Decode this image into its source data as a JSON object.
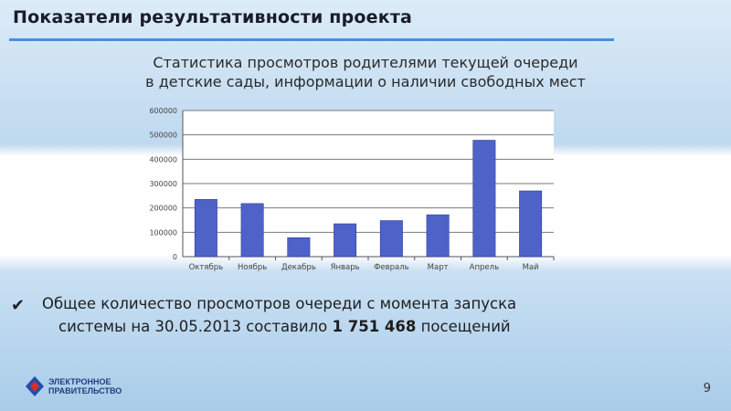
{
  "header": {
    "title": "Показатели результативности проекта"
  },
  "subtitle": {
    "line1": "Статистика просмотров родителями текущей очереди",
    "line2": "в детские сады, информации о наличии свободных мест"
  },
  "chart_data": {
    "type": "bar",
    "categories": [
      "Октябрь",
      "Ноябрь",
      "Декабрь",
      "Январь",
      "Февраль",
      "Март",
      "Апрель",
      "Май"
    ],
    "values": [
      235000,
      218000,
      78000,
      135000,
      148000,
      172000,
      478000,
      270000
    ],
    "ylim": [
      0,
      600000
    ],
    "yticks": [
      "0",
      "100000",
      "200000",
      "300000",
      "400000",
      "500000",
      "600000"
    ],
    "grid": true,
    "bar_color": "#4f62c8"
  },
  "note": {
    "prefix": "Общее количество просмотров очереди с момента запуска",
    "line2_text": "системы на 30.05.2013 составило ",
    "total": "1 751 468",
    "suffix": " посещений"
  },
  "footer": {
    "page_number": "9",
    "logo_line1": "ЭЛЕКТРОННОЕ",
    "logo_line2": "ПРАВИТЕЛЬСТВО"
  }
}
